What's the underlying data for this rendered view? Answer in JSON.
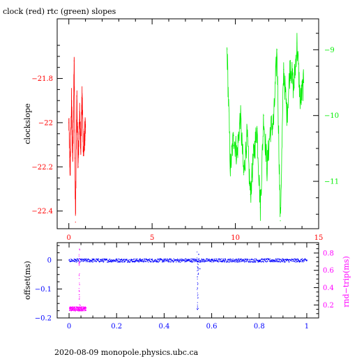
{
  "title": "clock (red) rtc (green) slopes",
  "footer": "2020-08-09  monopole.physics.ubc.ca",
  "colors": {
    "clock": "#ff0000",
    "rtc": "#00ee00",
    "offset": "#0000ff",
    "roundtrip": "#ff00ff",
    "frame": "#000000"
  },
  "chart_data": [
    {
      "type": "line",
      "title": "clock (red) rtc (green) slopes",
      "ylabel": "clockslope",
      "xlim": [
        -0.7,
        15
      ],
      "ylim": [
        -22.48,
        -21.53
      ],
      "y2lim": [
        -11.72,
        -8.53
      ],
      "grid": false,
      "x_ticks": [
        0,
        5,
        10,
        15
      ],
      "y_ticks": [
        -21.8,
        -22,
        -22.2,
        -22.4
      ],
      "y2_ticks": [
        -9,
        -10,
        -11
      ],
      "series": [
        {
          "name": "clock",
          "axis": "left",
          "color": "#ff0000",
          "x": [
            0.0,
            0.08,
            0.16,
            0.24,
            0.32,
            0.4,
            0.48,
            0.56,
            0.64,
            0.72,
            0.8,
            0.88,
            0.96,
            1.0
          ],
          "y": [
            -22.0,
            -22.23,
            -21.9,
            -22.16,
            -21.72,
            -22.45,
            -21.88,
            -22.2,
            -21.95,
            -22.1,
            -21.88,
            -22.15,
            -22.05,
            -22.02
          ]
        },
        {
          "name": "rtc",
          "axis": "right",
          "color": "#00ee00",
          "x": [
            9.5,
            9.7,
            9.9,
            10.1,
            10.3,
            10.5,
            10.7,
            10.9,
            11.1,
            11.3,
            11.5,
            11.7,
            11.9,
            12.1,
            12.3,
            12.5,
            12.7,
            12.9,
            13.1,
            13.3,
            13.5,
            13.7,
            13.9,
            14.1
          ],
          "y": [
            -8.99,
            -10.8,
            -10.3,
            -10.6,
            -10.0,
            -10.9,
            -10.3,
            -11.2,
            -10.6,
            -10.2,
            -11.4,
            -10.0,
            -10.8,
            -10.2,
            -10.1,
            -9.0,
            -11.6,
            -9.3,
            -10.0,
            -9.2,
            -9.6,
            -8.9,
            -9.8,
            -9.5
          ]
        }
      ]
    },
    {
      "type": "scatter",
      "ylabel": "offset(ms)",
      "y2label": "rnd−trip(ms)",
      "xlim": [
        -0.05,
        1.05
      ],
      "ylim": [
        -0.2,
        0.06
      ],
      "y2lim": [
        0.05,
        0.92
      ],
      "grid": false,
      "x_ticks": [
        0,
        0.2,
        0.4,
        0.6,
        0.8,
        1
      ],
      "y_ticks": [
        0,
        -0.1,
        -0.2
      ],
      "y2_ticks": [
        0.8,
        0.6,
        0.4,
        0.2
      ],
      "series": [
        {
          "name": "offset",
          "axis": "left",
          "color": "#0000ff",
          "baseline": 0.0,
          "x": [
            0.0,
            0.1,
            0.2,
            0.3,
            0.4,
            0.5,
            0.54,
            0.545,
            0.55,
            0.6,
            0.7,
            0.8,
            0.9,
            1.0
          ],
          "y": [
            0.0,
            0.0,
            0.0,
            0.0,
            0.0,
            0.0,
            -0.17,
            0.02,
            -0.03,
            0.0,
            0.0,
            0.0,
            0.0,
            0.0
          ]
        },
        {
          "name": "roundtrip",
          "axis": "right",
          "color": "#ff00ff",
          "x": [
            0.0,
            0.02,
            0.04,
            0.042,
            0.045,
            0.05,
            0.06,
            0.07
          ],
          "y": [
            0.17,
            0.15,
            0.16,
            0.85,
            0.2,
            0.17,
            0.16,
            0.17
          ]
        }
      ]
    }
  ]
}
